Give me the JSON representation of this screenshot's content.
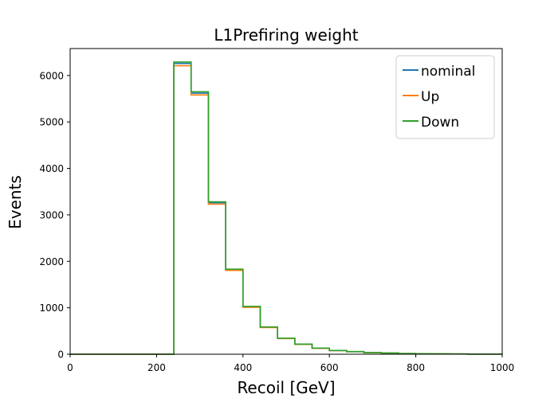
{
  "chart_data": {
    "type": "line",
    "title": "L1Prefiring weight",
    "xlabel": "Recoil [GeV]",
    "ylabel": "Events",
    "xlim": [
      0,
      1000
    ],
    "ylim": [
      0,
      6580
    ],
    "xticks": [
      0,
      200,
      400,
      600,
      800,
      1000
    ],
    "yticks": [
      0,
      1000,
      2000,
      3000,
      4000,
      5000,
      6000
    ],
    "grid": false,
    "legend_position": "top-right",
    "bin_edges": [
      0,
      40,
      80,
      120,
      160,
      200,
      240,
      280,
      320,
      360,
      400,
      440,
      480,
      520,
      560,
      600,
      640,
      680,
      720,
      760,
      800,
      840,
      880,
      920,
      960,
      1000
    ],
    "series": [
      {
        "name": "nominal",
        "color": "#1f77b4",
        "values": [
          0,
          0,
          0,
          0,
          0,
          0,
          6260,
          5620,
          3260,
          1820,
          1020,
          580,
          340,
          215,
          130,
          80,
          55,
          35,
          25,
          15,
          10,
          8,
          5,
          3,
          2
        ]
      },
      {
        "name": "Up",
        "color": "#ff7f0e",
        "values": [
          0,
          0,
          0,
          0,
          0,
          0,
          6210,
          5580,
          3230,
          1805,
          1010,
          575,
          338,
          212,
          128,
          79,
          54,
          34,
          24,
          15,
          10,
          8,
          5,
          3,
          2
        ]
      },
      {
        "name": "Down",
        "color": "#2ca02c",
        "values": [
          0,
          0,
          0,
          0,
          0,
          0,
          6290,
          5650,
          3280,
          1830,
          1030,
          585,
          343,
          218,
          132,
          81,
          56,
          36,
          25,
          15,
          10,
          8,
          5,
          3,
          2
        ]
      }
    ]
  }
}
